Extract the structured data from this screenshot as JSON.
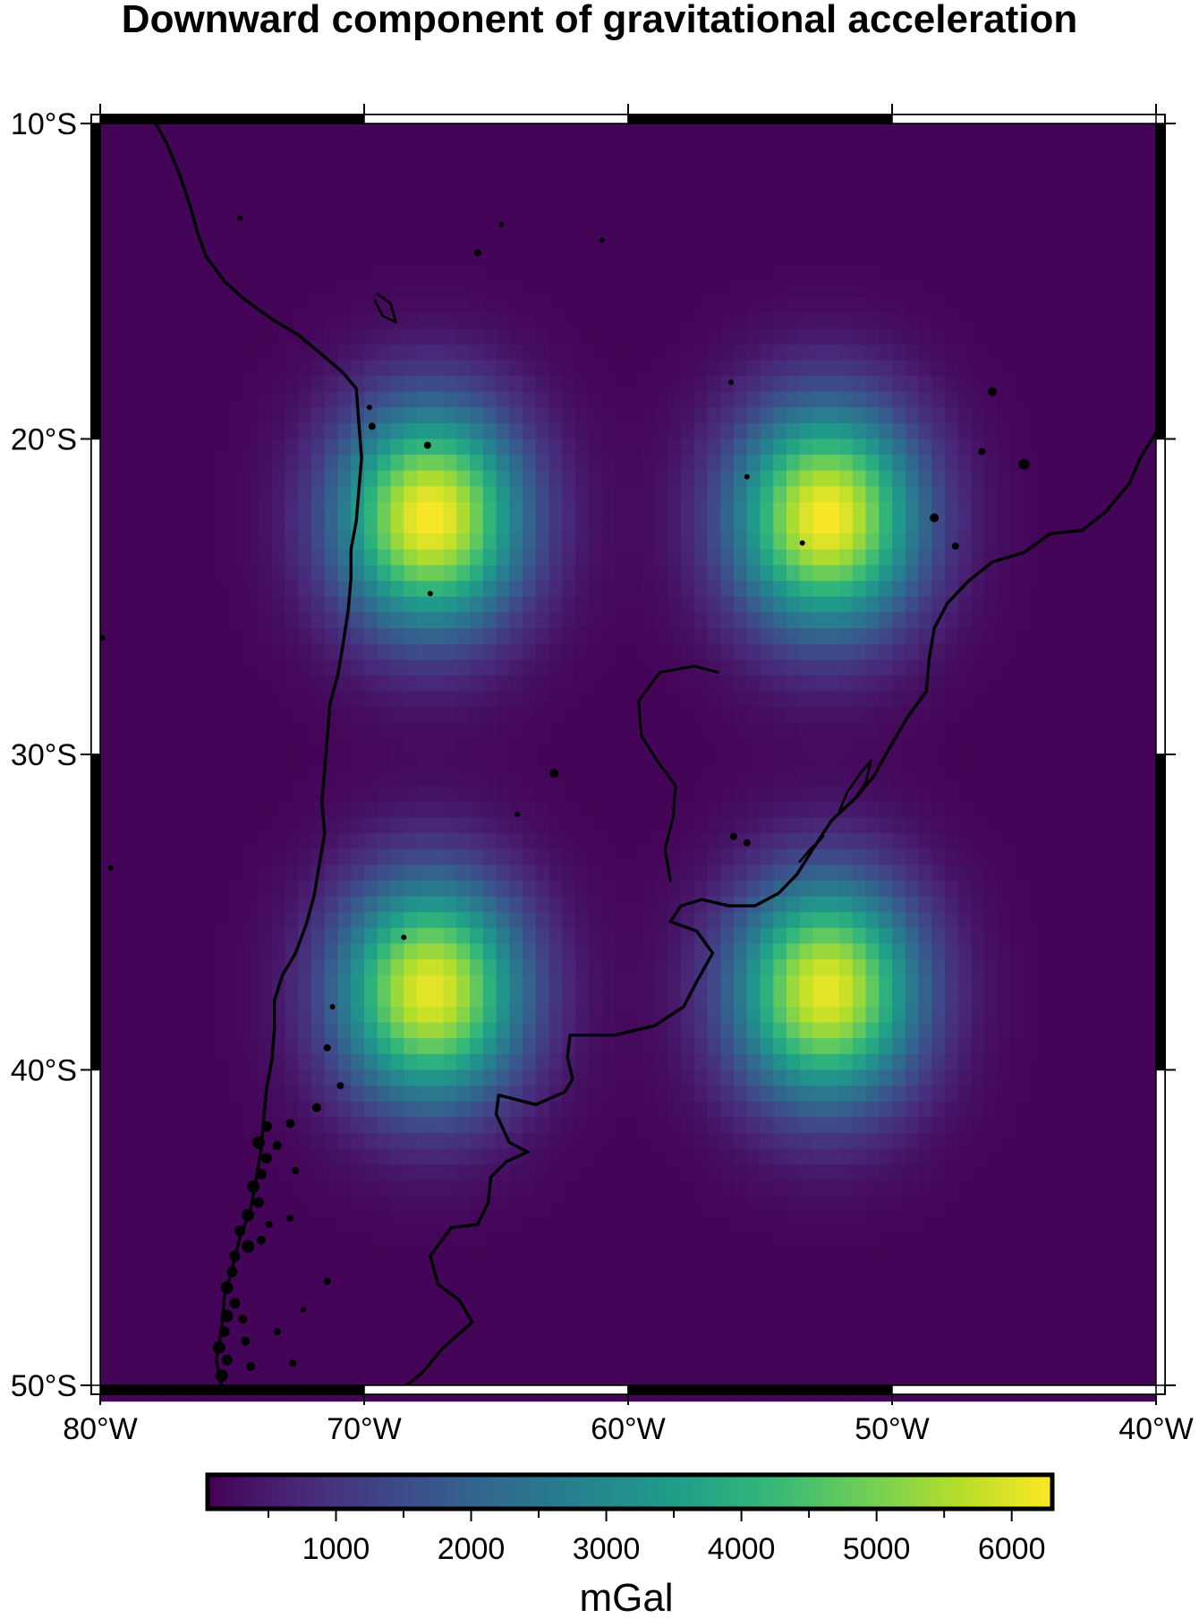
{
  "title": "Downward component of gravitational acceleration",
  "map": {
    "region": {
      "lon": [
        -80,
        -40
      ],
      "lat": [
        -50,
        -10
      ]
    },
    "lon_ticks": [
      {
        "value": -80,
        "label": "80°W"
      },
      {
        "value": -70,
        "label": "70°W"
      },
      {
        "value": -60,
        "label": "60°W"
      },
      {
        "value": -50,
        "label": "50°W"
      },
      {
        "value": -40,
        "label": "40°W"
      }
    ],
    "lat_ticks": [
      {
        "value": -10,
        "label": "10°S"
      },
      {
        "value": -20,
        "label": "20°S"
      },
      {
        "value": -30,
        "label": "30°S"
      },
      {
        "value": -40,
        "label": "40°S"
      },
      {
        "value": -50,
        "label": "50°S"
      }
    ],
    "frame": "fancy",
    "coastline_color": "#000000",
    "grid": {
      "type": "heatmap",
      "cell_size_deg": 0.5,
      "colormap": "viridis",
      "background_value": 100,
      "anomalies": [
        {
          "lon": -67.5,
          "lat": -22.5,
          "peak": 6200,
          "halfwidth_deg": 2.6
        },
        {
          "lon": -52.5,
          "lat": -22.5,
          "peak": 6200,
          "halfwidth_deg": 2.6
        },
        {
          "lon": -67.5,
          "lat": -37.5,
          "peak": 6000,
          "halfwidth_deg": 2.6
        },
        {
          "lon": -52.5,
          "lat": -37.5,
          "peak": 6000,
          "halfwidth_deg": 2.6
        }
      ]
    }
  },
  "colorbar": {
    "range": [
      50,
      6300
    ],
    "ticks": [
      {
        "value": 1000,
        "label": "1000"
      },
      {
        "value": 2000,
        "label": "2000"
      },
      {
        "value": 3000,
        "label": "3000"
      },
      {
        "value": 4000,
        "label": "4000"
      },
      {
        "value": 5000,
        "label": "5000"
      },
      {
        "value": 6000,
        "label": "6000"
      }
    ],
    "minor_tick_step": 500,
    "unit": "mGal"
  },
  "colors": {
    "viridis": [
      "#440154",
      "#482878",
      "#3e4989",
      "#31688e",
      "#26828e",
      "#1f9e89",
      "#35b779",
      "#6ece58",
      "#b5de2b",
      "#fde725"
    ]
  }
}
